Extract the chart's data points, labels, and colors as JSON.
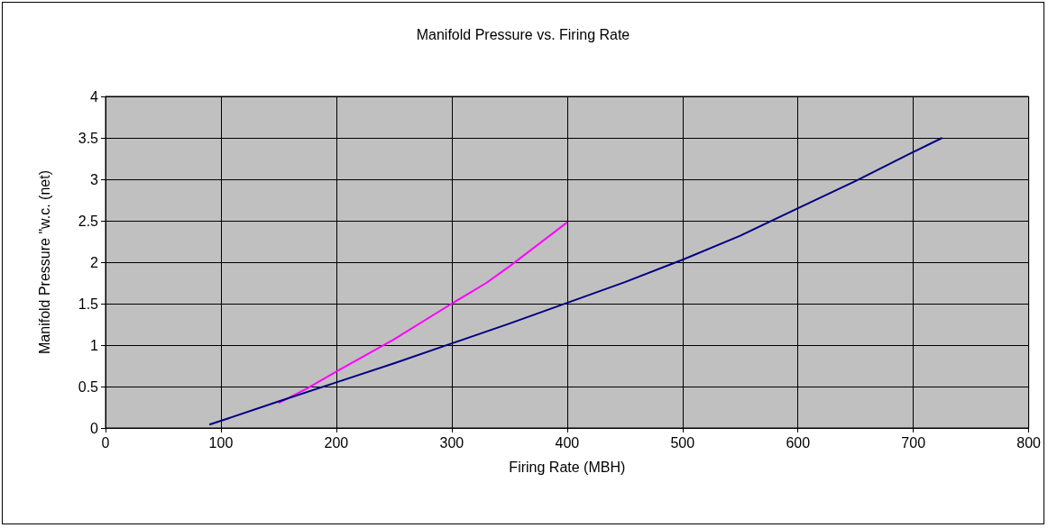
{
  "chart_data": {
    "type": "line",
    "title": "Manifold Pressure vs. Firing Rate",
    "xlabel": "Firing Rate (MBH)",
    "ylabel": "Manifold Pressure \"w.c. (net)",
    "series": [
      {
        "color": "#ff00ff",
        "x": [
          150,
          175,
          200,
          250,
          300,
          330,
          350,
          400
        ],
        "values": [
          0.3,
          0.48,
          0.68,
          1.07,
          1.5,
          1.75,
          1.95,
          2.48
        ]
      },
      {
        "color": "#000080",
        "x": [
          90,
          150,
          200,
          250,
          300,
          350,
          400,
          450,
          500,
          550,
          600,
          650,
          700,
          725
        ],
        "values": [
          0.04,
          0.32,
          0.55,
          0.78,
          1.02,
          1.26,
          1.51,
          1.76,
          2.03,
          2.32,
          2.65,
          2.98,
          3.33,
          3.5
        ]
      }
    ],
    "xlim": [
      0,
      800
    ],
    "xticks": [
      0,
      100,
      200,
      300,
      400,
      500,
      600,
      700,
      800
    ],
    "ylim": [
      0,
      4
    ],
    "yticks": [
      0,
      0.5,
      1,
      1.5,
      2,
      2.5,
      3,
      3.5,
      4
    ],
    "grid": true,
    "marker": "none",
    "line_style": "solid"
  }
}
